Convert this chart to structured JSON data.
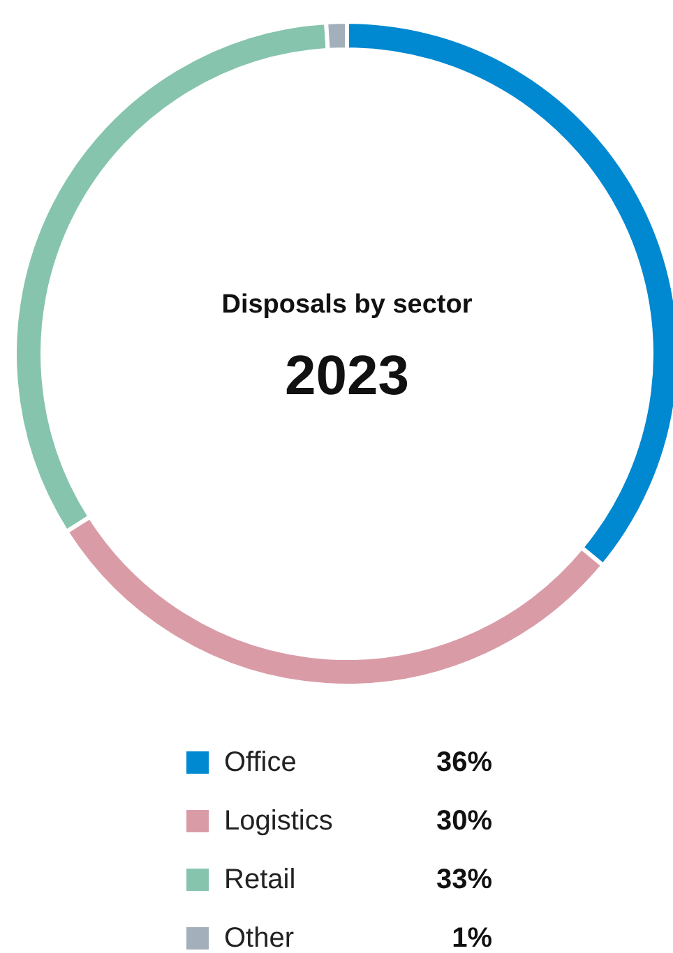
{
  "chart_data": {
    "type": "donut",
    "title": "Disposals by sector",
    "subtitle": "2023",
    "categories": [
      "Office",
      "Logistics",
      "Retail",
      "Other"
    ],
    "values": [
      36,
      30,
      33,
      1
    ],
    "value_labels": [
      "36%",
      "30%",
      "33%",
      "1%"
    ],
    "colors": [
      "#0088d1",
      "#d99ca7",
      "#86c4ae",
      "#a3afba"
    ],
    "legend": "bottom"
  }
}
